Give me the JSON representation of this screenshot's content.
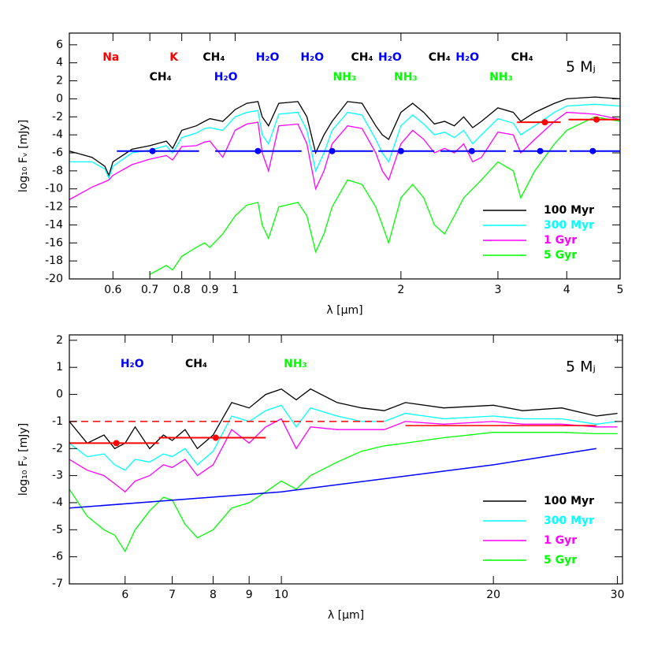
{
  "chart_data": [
    {
      "type": "line",
      "xscale": "log",
      "xlabel": "λ [μm]",
      "ylabel": "log₁₀ Fᵥ [mJy]",
      "xlim": [
        0.5,
        5
      ],
      "ylim": [
        -20,
        7.3
      ],
      "xticks": [
        0.6,
        0.7,
        0.8,
        0.9,
        1,
        2,
        3,
        4,
        5
      ],
      "yticks": [
        -20,
        -18,
        -16,
        -14,
        -12,
        -10,
        -8,
        -6,
        -4,
        -2,
        0,
        2,
        4,
        6
      ],
      "legend": "lower right",
      "x": [
        0.5,
        0.55,
        0.58,
        0.59,
        0.6,
        0.65,
        0.7,
        0.75,
        0.77,
        0.8,
        0.85,
        0.88,
        0.9,
        0.95,
        1.0,
        1.05,
        1.1,
        1.12,
        1.15,
        1.2,
        1.3,
        1.35,
        1.4,
        1.45,
        1.5,
        1.6,
        1.7,
        1.8,
        1.85,
        1.9,
        2.0,
        2.1,
        2.2,
        2.3,
        2.4,
        2.5,
        2.6,
        2.7,
        2.8,
        3.0,
        3.2,
        3.3,
        3.5,
        3.8,
        4.0,
        4.5,
        5.0
      ],
      "series": [
        {
          "name": "100 Myr",
          "color": "#000000",
          "values": [
            -5.8,
            -6.5,
            -7.5,
            -8.5,
            -7,
            -5.6,
            -5.2,
            -4.7,
            -5.5,
            -3.5,
            -3,
            -2.5,
            -2.2,
            -2.5,
            -1.2,
            -0.5,
            -0.3,
            -2,
            -3,
            -0.5,
            -0.3,
            -2,
            -6,
            -4,
            -2.5,
            -0.3,
            -0.5,
            -3,
            -4,
            -4.5,
            -1.5,
            -0.5,
            -1.5,
            -2.8,
            -2.5,
            -3,
            -2,
            -3.2,
            -2.5,
            -1,
            -1.5,
            -2.5,
            -1.5,
            -0.5,
            0,
            0.2,
            0
          ]
        },
        {
          "name": "300 Myr",
          "color": "#00ffff",
          "values": [
            -7,
            -7,
            -7.8,
            -8.8,
            -7.5,
            -6,
            -5.7,
            -5.2,
            -6,
            -4.3,
            -3.8,
            -3.3,
            -3.2,
            -3.5,
            -2,
            -1.5,
            -1.3,
            -4,
            -5,
            -1.7,
            -1.5,
            -3.5,
            -8,
            -6,
            -3.5,
            -1.5,
            -1.8,
            -4.5,
            -6,
            -7,
            -3,
            -1.8,
            -2.8,
            -4,
            -3.7,
            -4.3,
            -3.5,
            -5,
            -4,
            -2.2,
            -2.7,
            -4,
            -3,
            -1.5,
            -0.8,
            -0.6,
            -0.8
          ]
        },
        {
          "name": "1 Gyr",
          "color": "#ff00ff",
          "values": [
            -11.2,
            -9.8,
            -9.2,
            -9,
            -8.5,
            -7.3,
            -6.7,
            -6.3,
            -6.8,
            -5.3,
            -5.2,
            -4.8,
            -4.7,
            -6.5,
            -3.5,
            -2.8,
            -2.6,
            -6,
            -8,
            -3,
            -2.8,
            -5,
            -10,
            -8,
            -5,
            -3,
            -3.3,
            -6,
            -8,
            -9,
            -5,
            -3.5,
            -4.5,
            -6,
            -5.5,
            -6,
            -5,
            -7,
            -6.5,
            -3.7,
            -4,
            -6,
            -4.5,
            -2.5,
            -1.5,
            -1.7,
            -2.3
          ]
        },
        {
          "name": "5 Gyr",
          "color": "#00ff00",
          "values": [
            null,
            null,
            null,
            null,
            null,
            null,
            -19.5,
            -18.5,
            -19,
            -17.5,
            -16.5,
            -16,
            -16.5,
            -15,
            -13,
            -11.8,
            -11.5,
            -14,
            -15.5,
            -12,
            -11.5,
            -13,
            -17,
            -15,
            -12,
            -9,
            -9.5,
            -12,
            -14,
            -16,
            -11,
            -9.5,
            -11,
            -14,
            -15,
            -13,
            -11,
            -10,
            -9,
            -7,
            -8,
            -11,
            -8,
            -5,
            -3.5,
            -2,
            -2.5
          ]
        }
      ],
      "photometry": [
        {
          "color": "#0000ff",
          "x": [
            0.708,
            1.1,
            1.5,
            2.0,
            2.69,
            3.58,
            4.46
          ],
          "y": [
            -5.8,
            -5.8,
            -5.8,
            -5.8,
            -5.8,
            -5.8,
            -5.8
          ],
          "bands": [
            [
              0.61,
              0.86
            ],
            [
              0.92,
              1.32
            ],
            [
              1.38,
              1.78
            ],
            [
              1.82,
              2.3
            ],
            [
              2.36,
              3.1
            ],
            [
              3.2,
              4.0
            ],
            [
              4.05,
              5.0
            ]
          ]
        },
        {
          "color": "#ff0000",
          "x": [
            3.65,
            4.53
          ],
          "y": [
            -2.6,
            -2.3
          ],
          "bands": [
            [
              3.25,
              3.9
            ],
            [
              4.03,
              5.0
            ]
          ]
        }
      ],
      "annotations": [
        {
          "text": "Na",
          "x": 0.595,
          "y": 4.6,
          "color": "#ff0000"
        },
        {
          "text": "K",
          "x": 0.774,
          "y": 4.6,
          "color": "#ff0000"
        },
        {
          "text": "CH₄",
          "x": 0.915,
          "y": 4.6,
          "color": "#000000"
        },
        {
          "text": "CH₄",
          "x": 0.732,
          "y": 2.4,
          "color": "#000000"
        },
        {
          "text": "H₂O",
          "x": 0.962,
          "y": 2.4,
          "color": "#0000ff"
        },
        {
          "text": "H₂O",
          "x": 1.145,
          "y": 4.6,
          "color": "#0000ff"
        },
        {
          "text": "H₂O",
          "x": 1.38,
          "y": 4.6,
          "color": "#0000ff"
        },
        {
          "text": "CH₄",
          "x": 1.7,
          "y": 4.6,
          "color": "#000000"
        },
        {
          "text": "H₂O",
          "x": 1.91,
          "y": 4.6,
          "color": "#0000ff"
        },
        {
          "text": "NH₃",
          "x": 1.58,
          "y": 2.4,
          "color": "#00ff00"
        },
        {
          "text": "NH₃",
          "x": 2.04,
          "y": 2.4,
          "color": "#00ff00"
        },
        {
          "text": "CH₄",
          "x": 2.35,
          "y": 4.6,
          "color": "#000000"
        },
        {
          "text": "H₂O",
          "x": 2.64,
          "y": 4.6,
          "color": "#0000ff"
        },
        {
          "text": "NH₃",
          "x": 3.04,
          "y": 2.4,
          "color": "#00ff00"
        },
        {
          "text": "CH₄",
          "x": 3.32,
          "y": 4.6,
          "color": "#000000"
        },
        {
          "text": "5 Mⱼ",
          "x": 4.24,
          "y": 3.5,
          "color": "#000000"
        }
      ]
    },
    {
      "type": "line",
      "xscale": "log",
      "xlabel": "λ [μm]",
      "ylabel": "log₁₀ Fᵥ [mJy]",
      "xlim": [
        5,
        30.5
      ],
      "ylim": [
        -7,
        2.2
      ],
      "xticks": [
        6,
        7,
        8,
        9,
        10,
        20,
        30
      ],
      "yticks": [
        -7,
        -6,
        -5,
        -4,
        -3,
        -2,
        -1,
        0,
        1,
        2
      ],
      "legend": "lower right",
      "x": [
        5,
        5.3,
        5.6,
        5.8,
        6,
        6.2,
        6.5,
        6.8,
        7,
        7.3,
        7.6,
        8,
        8.5,
        9,
        9.5,
        10,
        10.5,
        11,
        12,
        13,
        14,
        15,
        17,
        20,
        22,
        25,
        28,
        30
      ],
      "series": [
        {
          "name": "100 Myr",
          "color": "#000000",
          "values": [
            -1,
            -1.8,
            -1.5,
            -2,
            -1.8,
            -1.2,
            -2,
            -1.5,
            -1.7,
            -1.3,
            -2,
            -1.5,
            -0.3,
            -0.5,
            0,
            0.2,
            -0.2,
            0.2,
            -0.3,
            -0.5,
            -0.6,
            -0.3,
            -0.5,
            -0.4,
            -0.6,
            -0.5,
            -0.8,
            -0.7
          ]
        },
        {
          "name": "300 Myr",
          "color": "#00ffff",
          "values": [
            -1.8,
            -2.3,
            -2.2,
            -2.6,
            -2.8,
            -2.4,
            -2.5,
            -2.2,
            -2.3,
            -2,
            -2.6,
            -2.1,
            -0.8,
            -1,
            -0.6,
            -0.4,
            -1.2,
            -0.5,
            -0.8,
            -1,
            -1,
            -0.7,
            -0.9,
            -0.8,
            -0.9,
            -0.9,
            -1.1,
            -1
          ]
        },
        {
          "name": "1 Gyr",
          "color": "#ff00ff",
          "values": [
            -2.4,
            -2.8,
            -3,
            -3.3,
            -3.6,
            -3.2,
            -3,
            -2.6,
            -2.7,
            -2.4,
            -3,
            -2.6,
            -1.3,
            -1.8,
            -1.2,
            -0.9,
            -2,
            -1.2,
            -1.3,
            -1.3,
            -1.3,
            -1.0,
            -1.1,
            -1.0,
            -1.1,
            -1.1,
            -1.2,
            -1.2
          ]
        },
        {
          "name": "5 Gyr",
          "color": "#00ff00",
          "values": [
            -3.5,
            -4.5,
            -5,
            -5.2,
            -5.8,
            -5,
            -4.3,
            -3.8,
            -3.9,
            -4.8,
            -5.3,
            -5,
            -4.2,
            -4,
            -3.6,
            -3.2,
            -3.5,
            -3,
            -2.5,
            -2.1,
            -1.9,
            -1.8,
            -1.6,
            -1.4,
            -1.4,
            -1.4,
            -1.45,
            -1.45
          ]
        }
      ],
      "photometry": [
        {
          "color": "#ff0000",
          "x": [
            5.83,
            8.07
          ],
          "y": [
            -1.8,
            -1.6
          ],
          "bands": [
            [
              5.0,
              6.7
            ],
            [
              6.7,
              9.5
            ]
          ]
        }
      ],
      "overlays": [
        {
          "color": "#ff0000",
          "dashed": true,
          "x": [
            5,
            14
          ],
          "y": [
            -1,
            -1
          ]
        },
        {
          "color": "#ff0000",
          "dashed": false,
          "x": [
            15,
            28
          ],
          "y": [
            -1.15,
            -1.15
          ]
        },
        {
          "color": "#0000ff",
          "dashed": false,
          "x": [
            5,
            10,
            20,
            28
          ],
          "y": [
            -4.2,
            -3.6,
            -2.6,
            -2.0
          ]
        }
      ],
      "annotations": [
        {
          "text": "H₂O",
          "x": 6.14,
          "y": 1.13,
          "color": "#0000ff"
        },
        {
          "text": "CH₄",
          "x": 7.57,
          "y": 1.13,
          "color": "#000000"
        },
        {
          "text": "NH₃",
          "x": 10.47,
          "y": 1.13,
          "color": "#00ff00"
        },
        {
          "text": "5 Mⱼ",
          "x": 26.6,
          "y": 1.0,
          "color": "#000000"
        }
      ]
    }
  ]
}
